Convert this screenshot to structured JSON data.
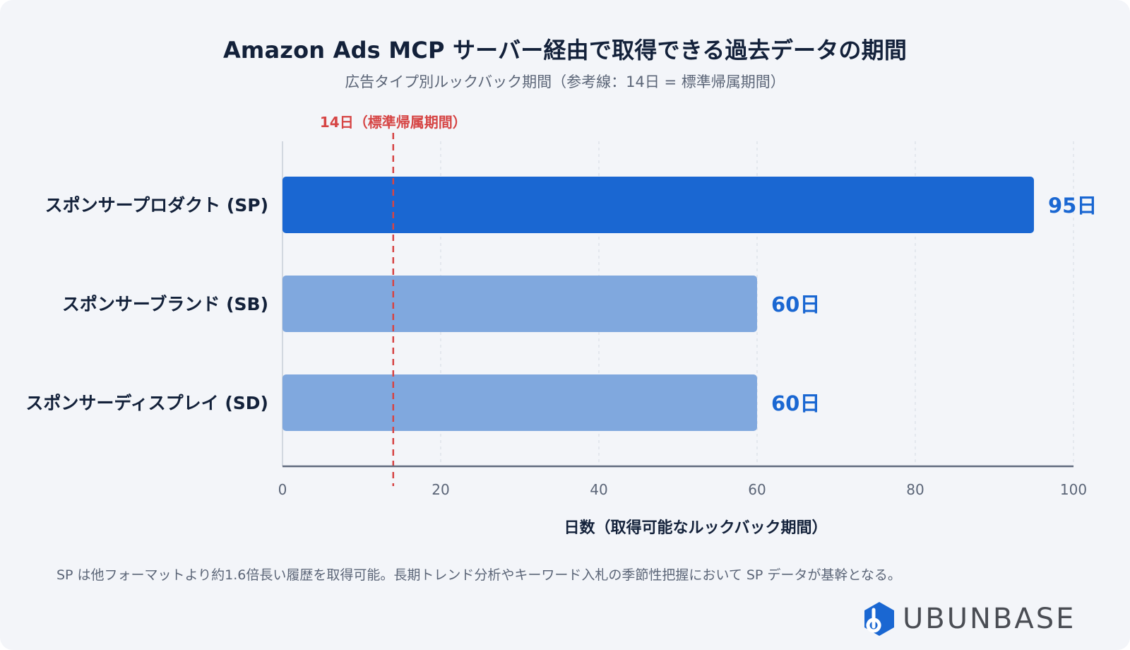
{
  "chart_data": {
    "type": "bar",
    "orientation": "horizontal",
    "title": "Amazon Ads MCP サーバー経由で取得できる過去データの期間",
    "subtitle": "広告タイプ別ルックバック期間（参考線：14日 = 標準帰属期間）",
    "categories": [
      "スポンサープロダクト (SP)",
      "スポンサーブランド (SB)",
      "スポンサーディスプレイ (SD)"
    ],
    "values": [
      95,
      60,
      60
    ],
    "data_labels": [
      "95日",
      "60日",
      "60日"
    ],
    "xlabel": "日数（取得可能なルックバック期間）",
    "ylabel": "",
    "xlim": [
      0,
      100
    ],
    "xticks": [
      0,
      20,
      40,
      60,
      80,
      100
    ],
    "grid": true,
    "reference_line": {
      "value": 14,
      "label": "14日（標準帰属期間）",
      "color": "#d64545"
    },
    "colors": {
      "highlight": "#1a67d2",
      "normal": "#80a8de",
      "label_text": "#1a67d2"
    },
    "highlight_index": 0
  },
  "footnote": "SP は他フォーマットより約1.6倍長い履歴を取得可能。長期トレンド分析やキーワード入札の季節性把握において SP データが基幹となる。",
  "brand": {
    "logo_text": "UBUNBASE",
    "logo_icon": "hexagon-b-icon",
    "logo_color": "#1a67d2"
  }
}
